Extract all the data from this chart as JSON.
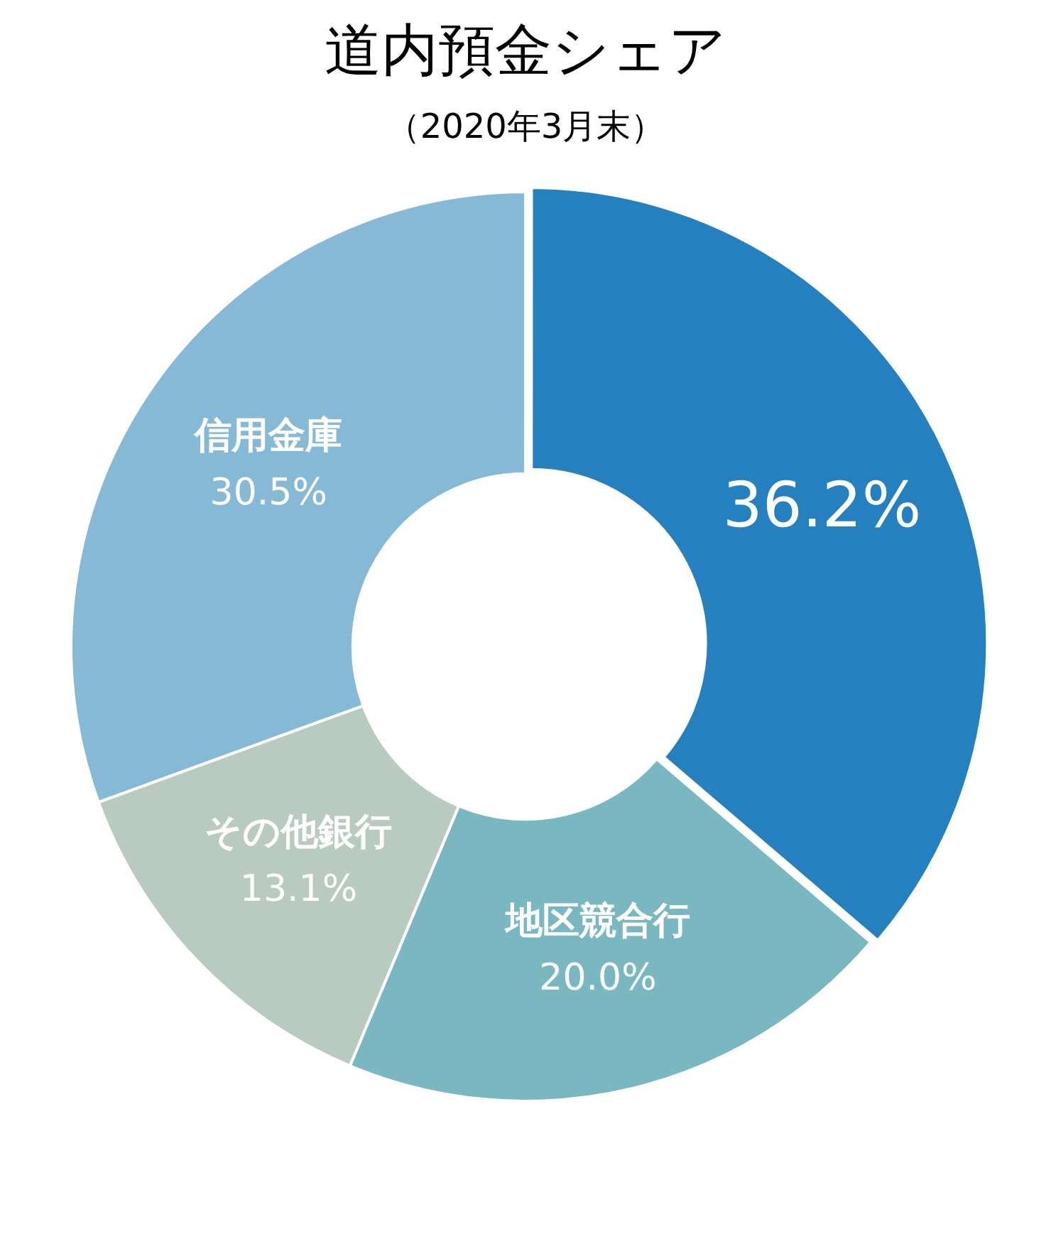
{
  "chart_data": {
    "type": "donut",
    "title": "道内預金シェア",
    "subtitle": "（2020年3月末）",
    "categories": [
      null,
      "地区競合行",
      "その他銀行",
      "信用金庫"
    ],
    "values": [
      36.2,
      20.0,
      13.1,
      30.5
    ],
    "colors": [
      "#2580bf",
      "#79b8c0",
      "#b9cbc0",
      "#86b9d6"
    ],
    "value_labels": [
      "36.2%",
      "20.0%",
      "13.1%",
      "30.5%"
    ],
    "legend": false
  }
}
